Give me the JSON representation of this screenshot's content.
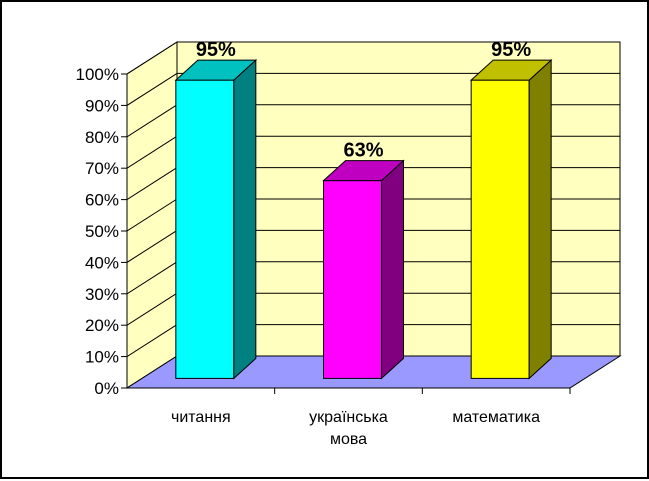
{
  "chart_data": {
    "type": "bar",
    "categories": [
      [
        "читання"
      ],
      [
        "українська",
        "мова"
      ],
      [
        "математика"
      ]
    ],
    "values": [
      95,
      63,
      95
    ],
    "data_labels": [
      "95%",
      "63%",
      "95%"
    ],
    "bar_colors": [
      {
        "front": "#00ffff",
        "side": "#008080",
        "top": "#00c0c0"
      },
      {
        "front": "#ff00ff",
        "side": "#800080",
        "top": "#c000c0"
      },
      {
        "front": "#ffff00",
        "side": "#808000",
        "top": "#c0c000"
      }
    ],
    "ylim": [
      0,
      100
    ],
    "yticks": [
      0,
      10,
      20,
      30,
      40,
      50,
      60,
      70,
      80,
      90,
      100
    ],
    "ytick_labels": [
      "0%",
      "10%",
      "20%",
      "30%",
      "40%",
      "50%",
      "60%",
      "70%",
      "80%",
      "90%",
      "100%"
    ],
    "title": "",
    "xlabel": "",
    "ylabel": "",
    "grid": true,
    "legend": "none",
    "colors": {
      "wall": "#ffffc0",
      "floor": "#9999ff",
      "gridline": "#000000",
      "border": "#000000"
    }
  }
}
